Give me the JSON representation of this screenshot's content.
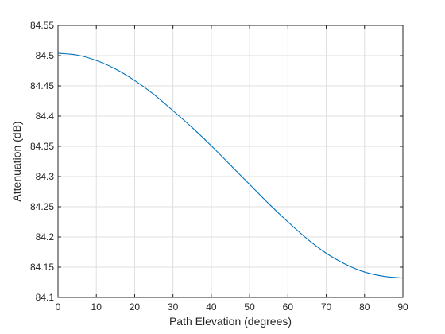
{
  "chart_data": {
    "type": "line",
    "title": "",
    "xlabel": "Path Elevation (degrees)",
    "ylabel": "Attenuation (dB)",
    "xlim": [
      0,
      90
    ],
    "ylim": [
      84.1,
      84.55
    ],
    "xticks": [
      0,
      10,
      20,
      30,
      40,
      50,
      60,
      70,
      80,
      90
    ],
    "xtick_labels": [
      "0",
      "10",
      "20",
      "30",
      "40",
      "50",
      "60",
      "70",
      "80",
      "90"
    ],
    "yticks": [
      84.1,
      84.15,
      84.2,
      84.25,
      84.3,
      84.35,
      84.4,
      84.45,
      84.5,
      84.55
    ],
    "ytick_labels": [
      "84.1",
      "84.15",
      "84.2",
      "84.25",
      "84.3",
      "84.35",
      "84.4",
      "84.45",
      "84.5",
      "84.55"
    ],
    "grid": true,
    "legend": "none",
    "series": [
      {
        "color": "#0072bd",
        "x": [
          0,
          5,
          10,
          15,
          20,
          25,
          30,
          35,
          40,
          45,
          50,
          55,
          60,
          65,
          70,
          75,
          80,
          85,
          90
        ],
        "y": [
          84.504,
          84.501,
          84.492,
          84.478,
          84.459,
          84.436,
          84.409,
          84.381,
          84.351,
          84.319,
          84.287,
          84.255,
          84.225,
          84.197,
          84.173,
          84.155,
          84.142,
          84.135,
          84.132
        ]
      }
    ]
  }
}
